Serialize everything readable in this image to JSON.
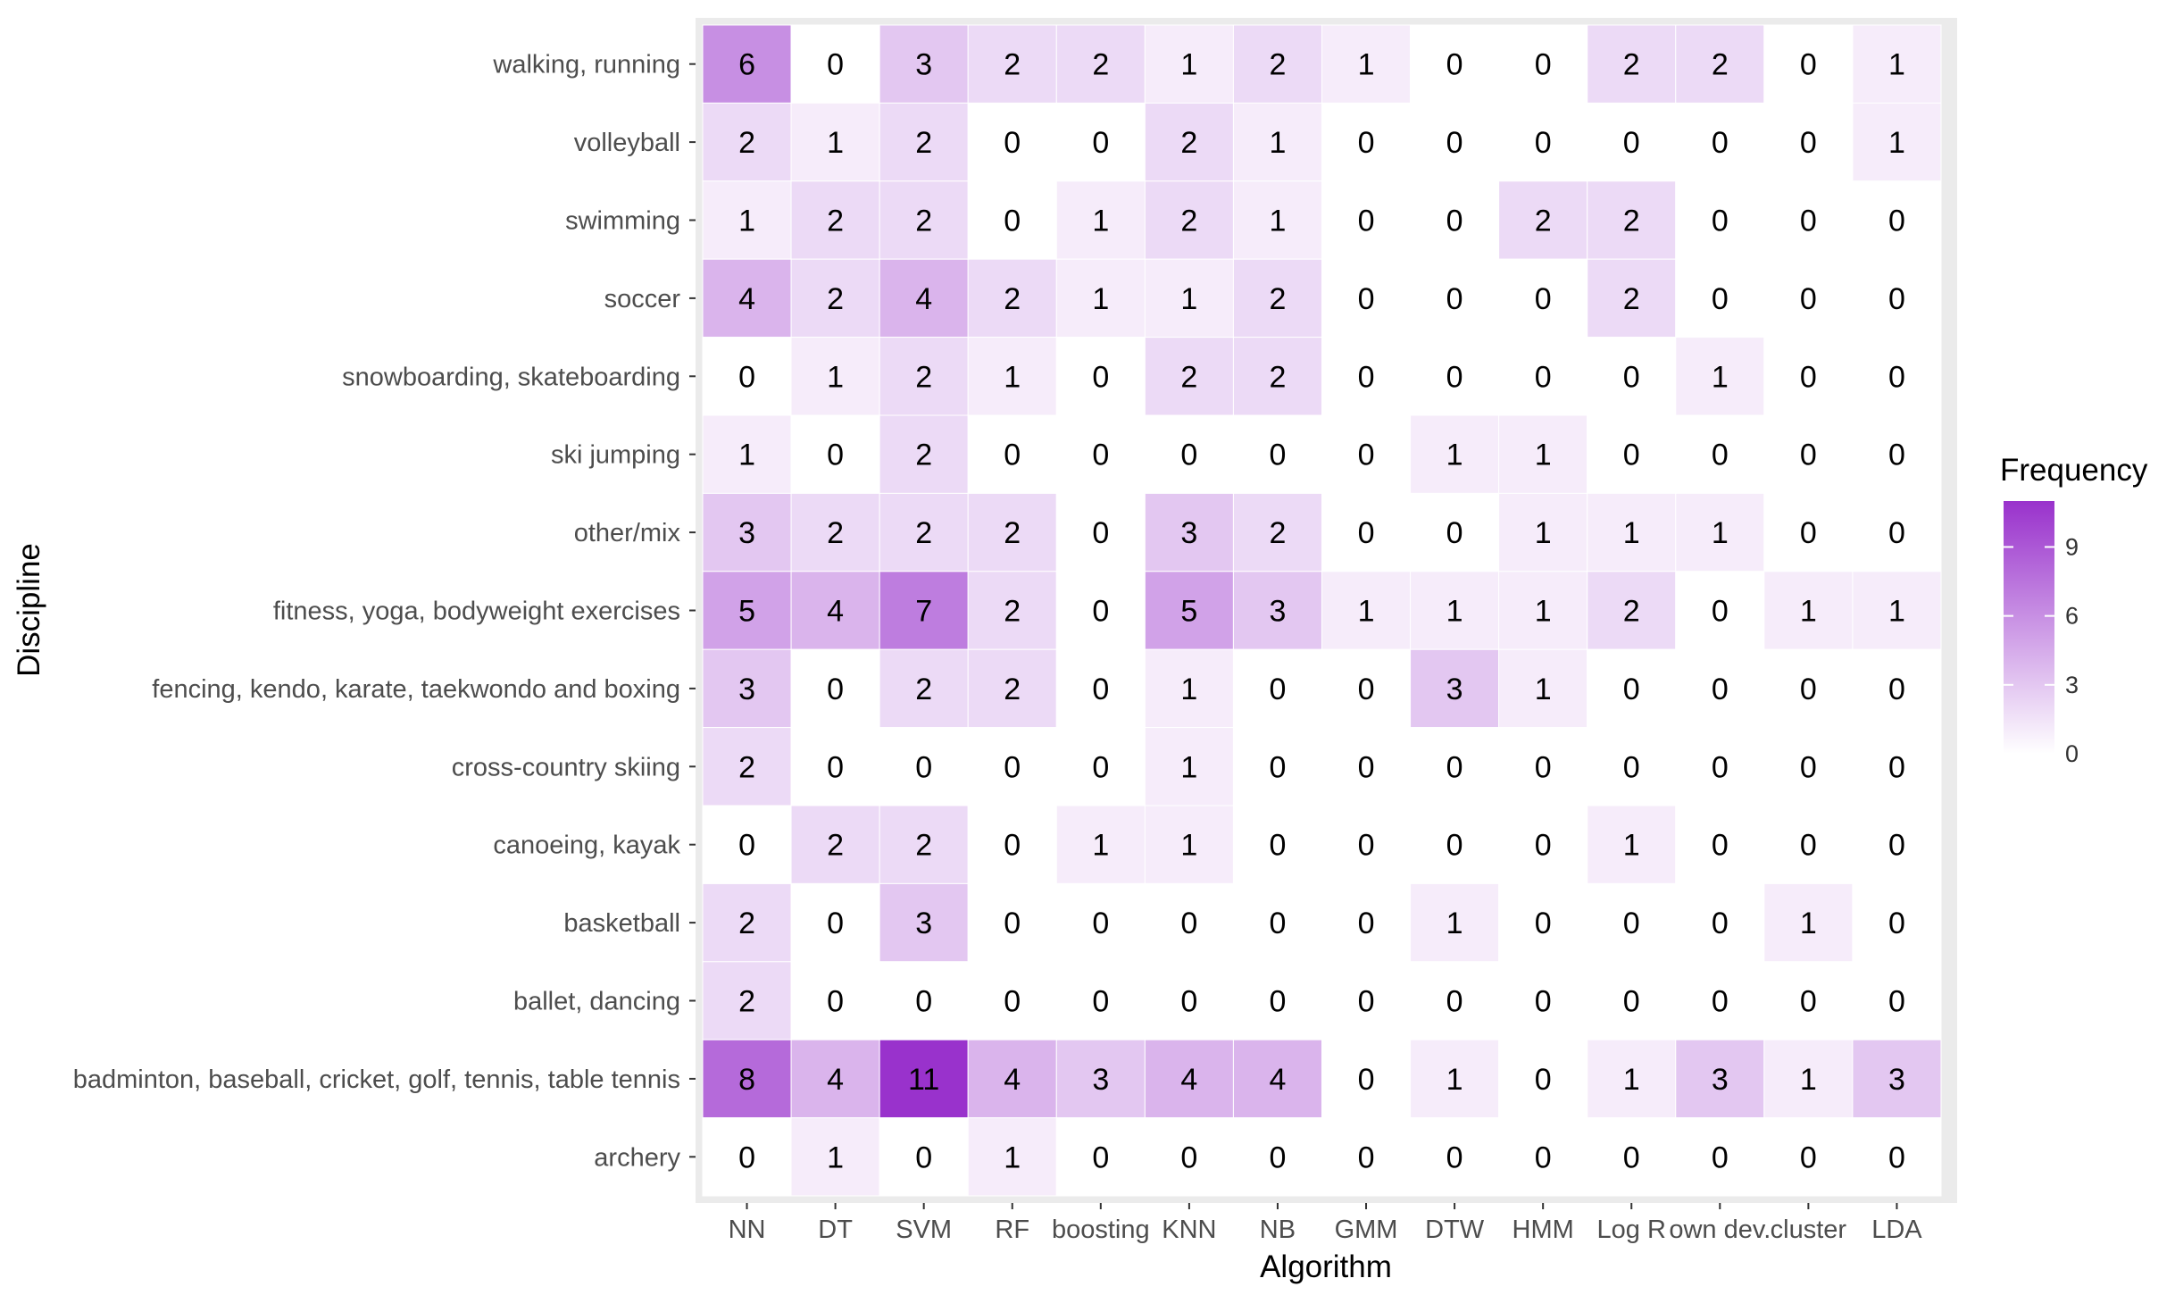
{
  "chart_data": {
    "type": "heatmap",
    "xlabel": "Algorithm",
    "ylabel": "Discipline",
    "x_categories": [
      "NN",
      "DT",
      "SVM",
      "RF",
      "boosting",
      "KNN",
      "NB",
      "GMM",
      "DTW",
      "HMM",
      "Log R",
      "own dev.",
      "cluster",
      "LDA"
    ],
    "x_tick_labels": [
      "NN",
      "DT",
      "SVM",
      "RF",
      "boosting",
      "KNN",
      "NB",
      "GMM",
      "DTW",
      "HMM",
      "Log R",
      "own dev.",
      "cluster",
      "LDA"
    ],
    "y_categories_top_to_bottom": [
      "walking, running",
      "volleyball",
      "swimming",
      "soccer",
      "snowboarding, skateboarding",
      "ski jumping",
      "other/mix",
      "fitness, yoga, bodyweight exercises",
      "fencing, kendo, karate, taekwondo and boxing",
      "cross-country skiing",
      "canoeing, kayak",
      "basketball",
      "ballet, dancing",
      "badminton, baseball, cricket, golf, tennis, table tennis",
      "archery"
    ],
    "values": [
      [
        6,
        0,
        3,
        2,
        2,
        1,
        2,
        1,
        0,
        0,
        2,
        2,
        0,
        1
      ],
      [
        2,
        1,
        2,
        0,
        0,
        2,
        1,
        0,
        0,
        0,
        0,
        0,
        0,
        1
      ],
      [
        1,
        2,
        2,
        0,
        1,
        2,
        1,
        0,
        0,
        2,
        2,
        0,
        0,
        0
      ],
      [
        4,
        2,
        4,
        2,
        1,
        1,
        2,
        0,
        0,
        0,
        2,
        0,
        0,
        0
      ],
      [
        0,
        1,
        2,
        1,
        0,
        2,
        2,
        0,
        0,
        0,
        0,
        1,
        0,
        0
      ],
      [
        1,
        0,
        2,
        0,
        0,
        0,
        0,
        0,
        1,
        1,
        0,
        0,
        0,
        0
      ],
      [
        3,
        2,
        2,
        2,
        0,
        3,
        2,
        0,
        0,
        1,
        1,
        1,
        0,
        0
      ],
      [
        5,
        4,
        7,
        2,
        0,
        5,
        3,
        1,
        1,
        1,
        2,
        0,
        1,
        1
      ],
      [
        3,
        0,
        2,
        2,
        0,
        1,
        0,
        0,
        3,
        1,
        0,
        0,
        0,
        0
      ],
      [
        2,
        0,
        0,
        0,
        0,
        1,
        0,
        0,
        0,
        0,
        0,
        0,
        0,
        0
      ],
      [
        0,
        2,
        2,
        0,
        1,
        1,
        0,
        0,
        0,
        0,
        1,
        0,
        0,
        0
      ],
      [
        2,
        0,
        3,
        0,
        0,
        0,
        0,
        0,
        1,
        0,
        0,
        0,
        1,
        0
      ],
      [
        2,
        0,
        0,
        0,
        0,
        0,
        0,
        0,
        0,
        0,
        0,
        0,
        0,
        0
      ],
      [
        8,
        4,
        11,
        4,
        3,
        4,
        4,
        0,
        1,
        0,
        1,
        3,
        1,
        3
      ],
      [
        0,
        1,
        0,
        1,
        0,
        0,
        0,
        0,
        0,
        0,
        0,
        0,
        0,
        0
      ]
    ],
    "legend": {
      "title": "Frequency",
      "ticks": [
        0,
        3,
        6,
        9
      ],
      "range": [
        0,
        11
      ],
      "position": "right"
    },
    "colors": {
      "low": "#ffffff",
      "high": "#9932cc",
      "panel_background": "#ebebeb",
      "grid": "#ffffff"
    }
  }
}
